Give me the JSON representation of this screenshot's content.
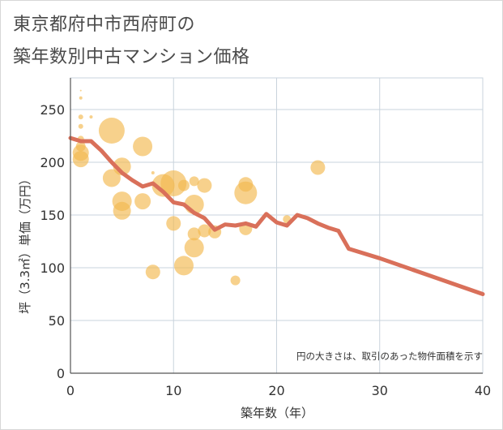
{
  "title_line1": "東京都府中市西府町の",
  "title_line2": "築年数別中古マンション価格",
  "chart_data": {
    "type": "scatter",
    "xlabel": "築年数（年）",
    "ylabel": "坪（3.3㎡）単価（万円）",
    "xlim": [
      0,
      40
    ],
    "ylim": [
      0,
      280
    ],
    "x_ticks": [
      "0",
      "10",
      "20",
      "30",
      "40"
    ],
    "y_ticks": [
      "0",
      "50",
      "100",
      "150",
      "200",
      "250"
    ],
    "note": "円の大きさは、取引のあった物件面積を示す",
    "grid": true,
    "colors": {
      "bubble": "#f2b84f",
      "line": "#d9705a",
      "grid": "#c9d3dc"
    },
    "bubbles": [
      {
        "x": 1,
        "y": 268,
        "r": 1
      },
      {
        "x": 1,
        "y": 261,
        "r": 2
      },
      {
        "x": 1,
        "y": 243,
        "r": 3
      },
      {
        "x": 2,
        "y": 243,
        "r": 2
      },
      {
        "x": 1,
        "y": 234,
        "r": 3
      },
      {
        "x": 1,
        "y": 222,
        "r": 4
      },
      {
        "x": 1,
        "y": 215,
        "r": 6
      },
      {
        "x": 1,
        "y": 209,
        "r": 10
      },
      {
        "x": 1,
        "y": 203,
        "r": 10
      },
      {
        "x": 4,
        "y": 230,
        "r": 16
      },
      {
        "x": 7,
        "y": 215,
        "r": 12
      },
      {
        "x": 5,
        "y": 196,
        "r": 11
      },
      {
        "x": 4,
        "y": 185,
        "r": 11
      },
      {
        "x": 8,
        "y": 190,
        "r": 2
      },
      {
        "x": 9,
        "y": 178,
        "r": 14
      },
      {
        "x": 10,
        "y": 180,
        "r": 16
      },
      {
        "x": 11,
        "y": 178,
        "r": 7
      },
      {
        "x": 12,
        "y": 182,
        "r": 6
      },
      {
        "x": 13,
        "y": 178,
        "r": 9
      },
      {
        "x": 7,
        "y": 163,
        "r": 10
      },
      {
        "x": 5,
        "y": 163,
        "r": 12
      },
      {
        "x": 5,
        "y": 154,
        "r": 11
      },
      {
        "x": 12,
        "y": 160,
        "r": 12
      },
      {
        "x": 17,
        "y": 179,
        "r": 9
      },
      {
        "x": 17,
        "y": 171,
        "r": 14
      },
      {
        "x": 10,
        "y": 142,
        "r": 9
      },
      {
        "x": 12,
        "y": 132,
        "r": 8
      },
      {
        "x": 13,
        "y": 135,
        "r": 8
      },
      {
        "x": 14,
        "y": 134,
        "r": 8
      },
      {
        "x": 17,
        "y": 137,
        "r": 8
      },
      {
        "x": 21,
        "y": 146,
        "r": 5
      },
      {
        "x": 12,
        "y": 119,
        "r": 12
      },
      {
        "x": 11,
        "y": 102,
        "r": 12
      },
      {
        "x": 8,
        "y": 96,
        "r": 9
      },
      {
        "x": 16,
        "y": 88,
        "r": 6
      },
      {
        "x": 24,
        "y": 195,
        "r": 9
      }
    ],
    "line": {
      "x": [
        0,
        1,
        2,
        3,
        4,
        5,
        6,
        7,
        8,
        9,
        10,
        11,
        12,
        13,
        14,
        15,
        16,
        17,
        18,
        19,
        20,
        21,
        22,
        23,
        24,
        25,
        26,
        27,
        30,
        35,
        40
      ],
      "y": [
        223,
        220,
        220,
        211,
        200,
        190,
        183,
        177,
        180,
        172,
        162,
        160,
        152,
        147,
        136,
        141,
        140,
        142,
        139,
        151,
        143,
        140,
        150,
        147,
        142,
        138,
        135,
        118,
        109,
        92,
        75
      ]
    }
  }
}
